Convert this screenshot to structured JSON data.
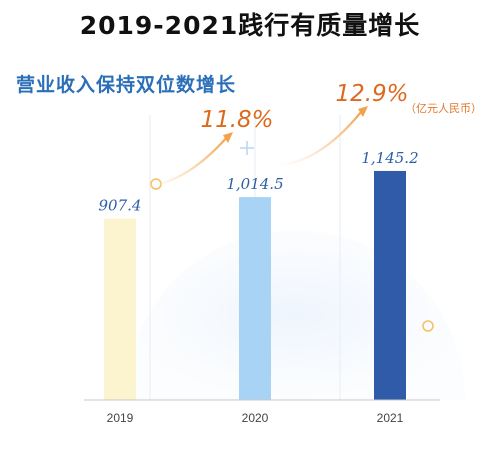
{
  "title": "2019-2021践行有质量增长",
  "subtitle": "营业收入保持双位数增长",
  "unit": "（亿元人民币）",
  "chart_data": {
    "type": "bar",
    "categories": [
      "2019",
      "2020",
      "2021"
    ],
    "values": [
      907.4,
      1014.5,
      1145.2
    ],
    "value_labels": [
      "907.4",
      "1,014.5",
      "1,145.2"
    ],
    "growth_labels": [
      "11.8%",
      "12.9%"
    ],
    "colors": [
      "#fcf3cf",
      "#a9d3f5",
      "#2f5ba9"
    ],
    "ylim": [
      0,
      1500
    ],
    "grid": false,
    "legend": "none"
  }
}
